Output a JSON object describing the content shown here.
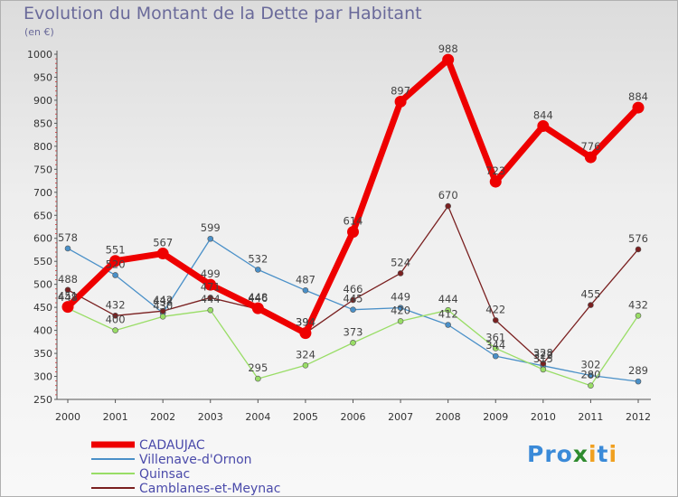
{
  "chart_data": {
    "type": "line",
    "title": "Evolution du Montant de la Dette par Habitant",
    "subtitle": "(en €)",
    "x": [
      "2000",
      "2001",
      "2002",
      "2003",
      "2004",
      "2005",
      "2006",
      "2007",
      "2008",
      "2009",
      "2010",
      "2011",
      "2012"
    ],
    "ylim": [
      250,
      1000
    ],
    "yticks": [
      250,
      300,
      350,
      400,
      450,
      500,
      550,
      600,
      650,
      700,
      750,
      800,
      850,
      900,
      950,
      1000
    ],
    "grid": false,
    "legend_position": "bottom-left",
    "series": [
      {
        "name": "CADAUJAC",
        "color": "#ee0000",
        "values": [
          451,
          551,
          567,
          499,
          448,
          394,
          614,
          897,
          988,
          723,
          844,
          776,
          884
        ]
      },
      {
        "name": "Villenave-d'Ornon",
        "color": "#4a90c8",
        "values": [
          578,
          520,
          438,
          599,
          532,
          487,
          445,
          449,
          412,
          344,
          323,
          302,
          289
        ]
      },
      {
        "name": "Quinsac",
        "color": "#99dd66",
        "values": [
          448,
          400,
          430,
          444,
          295,
          324,
          373,
          420,
          444,
          361,
          315,
          280,
          432
        ]
      },
      {
        "name": "Camblanes-et-Meynac",
        "color": "#7a2020",
        "values": [
          488,
          432,
          442,
          471,
          446,
          394,
          466,
          524,
          670,
          422,
          328,
          455,
          576
        ]
      }
    ]
  },
  "logo_text": {
    "p1": "Pro",
    "x": "x",
    "p2": "i",
    "t": "t",
    "i": "i"
  }
}
